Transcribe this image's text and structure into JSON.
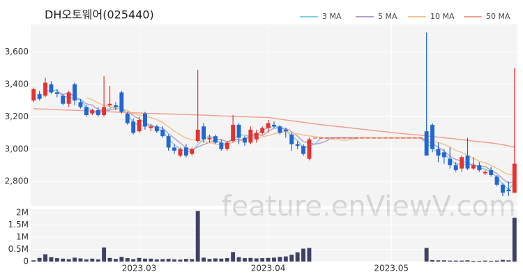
{
  "chart_data": {
    "type": "candlestick",
    "title": "DH오토웨어(025440)",
    "watermark": "feature.enViewV.com",
    "up_color": "#e8312f",
    "down_color": "#2266d6",
    "categories": [
      null,
      null,
      null,
      null,
      null,
      null,
      null,
      null,
      null,
      null,
      null,
      null,
      null,
      null,
      null,
      null,
      null,
      null,
      "2023.03",
      null,
      null,
      null,
      null,
      null,
      null,
      null,
      null,
      null,
      null,
      null,
      null,
      null,
      null,
      null,
      null,
      null,
      null,
      null,
      null,
      null,
      "2023.04",
      null,
      null,
      null,
      null,
      null,
      null,
      null,
      null,
      null,
      null,
      null,
      null,
      null,
      null,
      null,
      null,
      null,
      null,
      null,
      null,
      "2023.05",
      null,
      null,
      null,
      null,
      null,
      null,
      null,
      null,
      null,
      null,
      null,
      null,
      null,
      null,
      null,
      null,
      null,
      null,
      null,
      null,
      null
    ],
    "open": [
      3300,
      3340,
      3330,
      3400,
      3350,
      3330,
      3280,
      3400,
      3290,
      3260,
      3220,
      3240,
      3210,
      3270,
      3270,
      3350,
      3220,
      3170,
      3110,
      3220,
      3130,
      3140,
      3120,
      3080,
      3010,
      2960,
      3010,
      2970,
      3050,
      3140,
      3060,
      3080,
      3040,
      3000,
      3050,
      3150,
      3070,
      3040,
      3060,
      3100,
      3130,
      3150,
      3140,
      3120,
      3090,
      3030,
      3020,
      2940,
      3070,
      3070,
      3070,
      3070,
      3070,
      3070,
      3070,
      3070,
      3070,
      3070,
      3070,
      3070,
      3070,
      3070,
      3070,
      3070,
      3070,
      3070,
      3070,
      3110,
      3150,
      3000,
      2980,
      2940,
      2900,
      2880,
      2960,
      2880,
      2900,
      2850,
      2870,
      2830,
      2780,
      2750,
      2730
    ],
    "high": [
      3380,
      3360,
      3440,
      3420,
      3370,
      3340,
      3360,
      3410,
      3310,
      3270,
      3250,
      3260,
      3450,
      3390,
      3290,
      3360,
      3230,
      3190,
      3200,
      3230,
      3150,
      3150,
      3140,
      3090,
      3030,
      3010,
      3030,
      3010,
      3490,
      3160,
      3090,
      3090,
      3060,
      3050,
      3210,
      3160,
      3080,
      3140,
      3120,
      3140,
      3180,
      3170,
      3150,
      3130,
      3100,
      3050,
      3030,
      3070,
      3070,
      3070,
      3070,
      3070,
      3070,
      3070,
      3070,
      3070,
      3070,
      3070,
      3070,
      3070,
      3070,
      3070,
      3070,
      3070,
      3070,
      3070,
      3070,
      3720,
      3160,
      3040,
      3000,
      3010,
      2920,
      2960,
      3070,
      2950,
      2920,
      2870,
      2890,
      2840,
      2790,
      2800,
      3500
    ],
    "low": [
      3290,
      3300,
      3320,
      3340,
      3320,
      3270,
      3260,
      3270,
      3250,
      3200,
      3210,
      3200,
      3200,
      3260,
      3240,
      3220,
      3150,
      3090,
      3100,
      3120,
      3110,
      3100,
      3070,
      2990,
      2970,
      2950,
      2950,
      2960,
      3040,
      3040,
      3040,
      3030,
      2990,
      2990,
      3040,
      3030,
      3020,
      3030,
      3040,
      3090,
      3100,
      3130,
      3090,
      3070,
      2990,
      3000,
      2960,
      2930,
      3070,
      3070,
      3070,
      3070,
      3070,
      3070,
      3070,
      3070,
      3070,
      3070,
      3070,
      3070,
      3070,
      3070,
      3070,
      3070,
      3070,
      3070,
      3070,
      2960,
      2980,
      2920,
      2910,
      2880,
      2860,
      2860,
      2870,
      2870,
      2860,
      2840,
      2830,
      2770,
      2710,
      2710,
      2730
    ],
    "close": [
      3370,
      3310,
      3410,
      3350,
      3340,
      3280,
      3350,
      3300,
      3260,
      3210,
      3240,
      3210,
      3260,
      3280,
      3260,
      3230,
      3160,
      3100,
      3180,
      3140,
      3140,
      3110,
      3080,
      3010,
      2990,
      3000,
      2960,
      3000,
      3120,
      3060,
      3070,
      3040,
      3000,
      3040,
      3150,
      3070,
      3040,
      3120,
      3100,
      3130,
      3160,
      3140,
      3100,
      3110,
      3030,
      3020,
      2970,
      3060,
      3070,
      3070,
      3070,
      3070,
      3070,
      3070,
      3070,
      3070,
      3070,
      3070,
      3070,
      3070,
      3070,
      3070,
      3070,
      3070,
      3070,
      3070,
      3070,
      2960,
      3000,
      2960,
      2950,
      2900,
      2870,
      2950,
      2880,
      2900,
      2870,
      2860,
      2840,
      2780,
      2730,
      2740,
      2910
    ],
    "ylim": [
      2650,
      3770
    ],
    "yticks": [
      {
        "value": 2800,
        "label": "2,800"
      },
      {
        "value": 3000,
        "label": "3,000"
      },
      {
        "value": 3200,
        "label": "3,200"
      },
      {
        "value": 3400,
        "label": "3,400"
      },
      {
        "value": 3600,
        "label": "3,600"
      }
    ],
    "grid": true,
    "legend": "top-right",
    "series": [
      {
        "name": "3 MA",
        "color": "#7fcfdc",
        "values": [
          null,
          null,
          3363,
          3357,
          3367,
          3323,
          3323,
          3310,
          3303,
          3257,
          3237,
          3220,
          3237,
          3250,
          3267,
          3257,
          3217,
          3163,
          3147,
          3140,
          3153,
          3130,
          3110,
          3067,
          3027,
          3000,
          2983,
          2987,
          3027,
          3060,
          3083,
          3057,
          3037,
          3027,
          3063,
          3087,
          3087,
          3077,
          3087,
          3117,
          3130,
          3143,
          3133,
          3117,
          3080,
          3053,
          3007,
          3017,
          3033,
          3067,
          3070,
          3070,
          3070,
          3070,
          3070,
          3070,
          3070,
          3070,
          3070,
          3070,
          3070,
          3070,
          3070,
          3070,
          3070,
          3070,
          3070,
          3033,
          3010,
          2973,
          2970,
          2937,
          2907,
          2907,
          2900,
          2910,
          2883,
          2877,
          2857,
          2827,
          2783,
          2750,
          2793
        ]
      },
      {
        "name": "5 MA",
        "color": "#b7a0c8",
        "values": [
          null,
          null,
          null,
          null,
          3356,
          3338,
          3346,
          3324,
          3306,
          3280,
          3272,
          3244,
          3236,
          3240,
          3252,
          3248,
          3238,
          3206,
          3186,
          3164,
          3144,
          3134,
          3130,
          3096,
          3066,
          3038,
          3008,
          2992,
          3014,
          3028,
          3042,
          3058,
          3058,
          3046,
          3060,
          3060,
          3060,
          3084,
          3096,
          3082,
          3110,
          3130,
          3130,
          3128,
          3108,
          3080,
          3046,
          3038,
          3030,
          3038,
          3052,
          3070,
          3070,
          3070,
          3070,
          3070,
          3070,
          3070,
          3070,
          3070,
          3070,
          3070,
          3070,
          3070,
          3070,
          3070,
          3070,
          3048,
          3034,
          3012,
          2988,
          2954,
          2936,
          2926,
          2910,
          2900,
          2894,
          2892,
          2870,
          2850,
          2816,
          2790,
          2800
        ]
      },
      {
        "name": "10 MA",
        "color": "#f2c48a",
        "values": [
          null,
          null,
          null,
          null,
          null,
          null,
          null,
          null,
          null,
          3318,
          3305,
          3285,
          3270,
          3263,
          3255,
          3250,
          3238,
          3218,
          3210,
          3203,
          3193,
          3183,
          3165,
          3138,
          3111,
          3088,
          3068,
          3058,
          3054,
          3046,
          3039,
          3032,
          3024,
          3027,
          3043,
          3050,
          3058,
          3070,
          3068,
          3075,
          3084,
          3094,
          3104,
          3111,
          3099,
          3094,
          3087,
          3081,
          3078,
          3072,
          3066,
          3062,
          3058,
          3054,
          3059,
          3064,
          3074,
          3071,
          3070,
          3070,
          3070,
          3070,
          3070,
          3070,
          3070,
          3070,
          3070,
          3059,
          3052,
          3041,
          3029,
          3012,
          2992,
          2980,
          2961,
          2944,
          2924,
          2915,
          2899,
          2881,
          2859,
          2843,
          2839
        ]
      },
      {
        "name": "50 MA",
        "color": "#f0a090",
        "values": [
          3250,
          3248,
          3247,
          3245,
          3244,
          3242,
          3241,
          3239,
          3238,
          3236,
          3235,
          3233,
          3232,
          3230,
          3229,
          3227,
          3226,
          3224,
          3223,
          3221,
          3220,
          3219,
          3218,
          3217,
          3216,
          3215,
          3214,
          3212,
          3211,
          3210,
          3208,
          3207,
          3205,
          3204,
          3202,
          3201,
          3200,
          3198,
          3197,
          3196,
          3195,
          3190,
          3185,
          3180,
          3175,
          3170,
          3165,
          3160,
          3155,
          3151,
          3147,
          3143,
          3139,
          3135,
          3131,
          3127,
          3123,
          3119,
          3115,
          3111,
          3107,
          3103,
          3099,
          3095,
          3092,
          3089,
          3086,
          3082,
          3078,
          3074,
          3070,
          3066,
          3062,
          3058,
          3054,
          3050,
          3046,
          3042,
          3038,
          3033,
          3027,
          3020,
          3012
        ]
      }
    ],
    "volume": {
      "color": "#404066",
      "values": [
        50000,
        150000,
        300000,
        180000,
        140000,
        120000,
        100000,
        160000,
        130000,
        90000,
        120000,
        90000,
        580000,
        150000,
        110000,
        190000,
        140000,
        100000,
        150000,
        120000,
        120000,
        90000,
        100000,
        110000,
        90000,
        80000,
        110000,
        100000,
        2080000,
        160000,
        110000,
        130000,
        120000,
        140000,
        390000,
        180000,
        140000,
        150000,
        130000,
        140000,
        150000,
        160000,
        190000,
        210000,
        280000,
        380000,
        530000,
        560000,
        0,
        0,
        0,
        0,
        0,
        0,
        0,
        0,
        0,
        0,
        0,
        0,
        0,
        0,
        0,
        0,
        0,
        0,
        0,
        560000,
        60000,
        50000,
        50000,
        40000,
        40000,
        40000,
        50000,
        30000,
        30000,
        40000,
        30000,
        40000,
        70000,
        50000,
        1800000
      ],
      "ylim": [
        0,
        2150000
      ],
      "yticks": [
        0,
        {
          "value": 500000,
          "label": "0.5M"
        },
        {
          "value": 1000000,
          "label": "1M"
        },
        {
          "value": 1500000,
          "label": "1.5M"
        },
        {
          "value": 2000000,
          "label": "2M"
        }
      ]
    }
  }
}
